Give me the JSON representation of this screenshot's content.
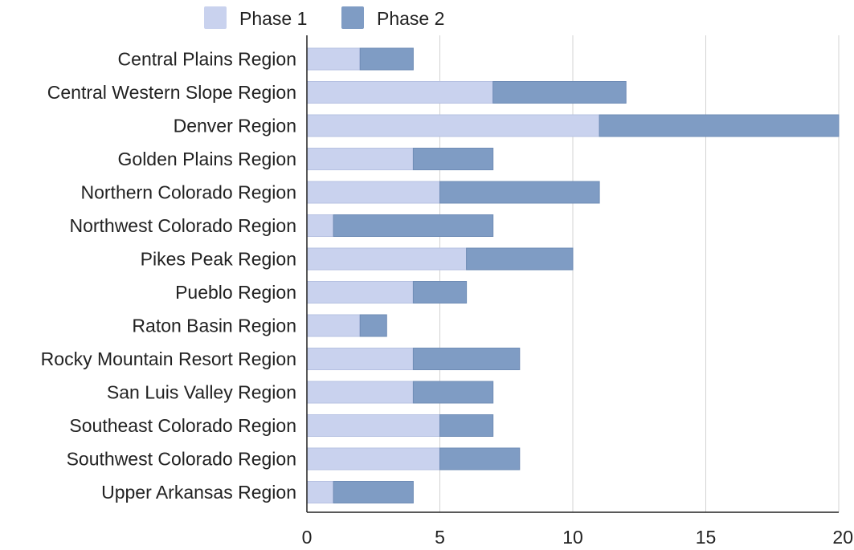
{
  "chart_data": {
    "type": "bar",
    "orientation": "horizontal",
    "stacked": true,
    "categories": [
      "Central Plains Region",
      "Central Western Slope Region",
      "Denver Region",
      "Golden Plains Region",
      "Northern Colorado Region",
      "Northwest Colorado Region",
      "Pikes Peak Region",
      "Pueblo Region",
      "Raton Basin Region",
      "Rocky Mountain Resort Region",
      "San Luis Valley Region",
      "Southeast Colorado Region",
      "Southwest Colorado Region",
      "Upper Arkansas Region"
    ],
    "series": [
      {
        "name": "Phase 1",
        "color": "#c9d2ee",
        "values": [
          2,
          7,
          11,
          4,
          5,
          1,
          6,
          4,
          2,
          4,
          4,
          5,
          5,
          1
        ]
      },
      {
        "name": "Phase 2",
        "color": "#7f9cc4",
        "values": [
          2,
          5,
          9,
          3,
          6,
          6,
          4,
          2,
          1,
          4,
          3,
          2,
          3,
          3
        ]
      }
    ],
    "xlim": [
      0,
      20
    ],
    "x_ticks": [
      "0",
      "5",
      "10",
      "15",
      "20"
    ],
    "grid": true,
    "legend": "top-left",
    "title": "",
    "xlabel": "",
    "ylabel": ""
  }
}
